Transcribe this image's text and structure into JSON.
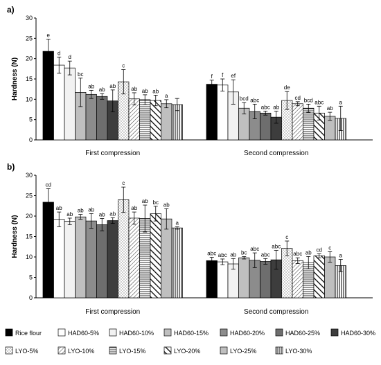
{
  "chart_data": [
    {
      "type": "bar",
      "panel": "a)",
      "ylabel": "Hardness (N)",
      "ylim": [
        0,
        30
      ],
      "yticks": [
        0,
        5,
        10,
        15,
        20,
        25,
        30
      ],
      "groups": [
        "First compression",
        "Second compression"
      ],
      "series": [
        {
          "name": "Rice flour",
          "values": [
            21.8,
            13.7
          ],
          "errors": [
            3.0,
            1.0
          ],
          "letters": [
            "e",
            "f"
          ]
        },
        {
          "name": "HAD60-5%",
          "values": [
            18.4,
            13.5
          ],
          "errors": [
            2.0,
            1.5
          ],
          "letters": [
            "d",
            "f"
          ]
        },
        {
          "name": "HAD60-10%",
          "values": [
            17.7,
            11.8
          ],
          "errors": [
            1.7,
            3.0
          ],
          "letters": [
            "d",
            "ef"
          ]
        },
        {
          "name": "HAD60-15%",
          "values": [
            11.7,
            7.8
          ],
          "errors": [
            3.5,
            1.4
          ],
          "letters": [
            "bc",
            "bcd"
          ]
        },
        {
          "name": "HAD60-20%",
          "values": [
            11.2,
            7.0
          ],
          "errors": [
            1.0,
            1.8
          ],
          "letters": [
            "ab",
            "abc"
          ]
        },
        {
          "name": "HAD60-25%",
          "values": [
            10.7,
            6.6
          ],
          "errors": [
            0.7,
            0.5
          ],
          "letters": [
            "ab",
            "abc"
          ]
        },
        {
          "name": "HAD60-30%",
          "values": [
            9.6,
            5.6
          ],
          "errors": [
            2.7,
            1.5
          ],
          "letters": [
            "ab",
            "ab"
          ]
        },
        {
          "name": "LYO-5%",
          "values": [
            14.3,
            9.7
          ],
          "errors": [
            3.0,
            2.2
          ],
          "letters": [
            "c",
            "de"
          ]
        },
        {
          "name": "LYO-10%",
          "values": [
            10.1,
            8.9
          ],
          "errors": [
            1.5,
            0.5
          ],
          "letters": [
            "ab",
            "cd"
          ]
        },
        {
          "name": "LYO-15%",
          "values": [
            9.9,
            7.8
          ],
          "errors": [
            1.2,
            1.0
          ],
          "letters": [
            "ab",
            "bcd"
          ]
        },
        {
          "name": "LYO-20%",
          "values": [
            9.7,
            6.6
          ],
          "errors": [
            1.3,
            1.7
          ],
          "letters": [
            "ab",
            "abc"
          ]
        },
        {
          "name": "LYO-25%",
          "values": [
            8.9,
            5.8
          ],
          "errors": [
            1.0,
            1.0
          ],
          "letters": [
            "a",
            "ab"
          ]
        },
        {
          "name": "LYO-30%",
          "values": [
            8.7,
            5.3
          ],
          "errors": [
            1.5,
            3.0
          ],
          "letters": [
            "",
            "a"
          ]
        }
      ]
    },
    {
      "type": "bar",
      "panel": "b)",
      "ylabel": "Hardness (N)",
      "ylim": [
        0,
        30
      ],
      "yticks": [
        0,
        5,
        10,
        15,
        20,
        25,
        30
      ],
      "groups": [
        "First compression",
        "Second compression"
      ],
      "series": [
        {
          "name": "Rice flour",
          "values": [
            23.4,
            9.1
          ],
          "errors": [
            3.3,
            0.8
          ],
          "letters": [
            "cd",
            "abc"
          ]
        },
        {
          "name": "HAD60-5%",
          "values": [
            19.2,
            8.8
          ],
          "errors": [
            1.8,
            0.7
          ],
          "letters": [
            "ab",
            "abc"
          ]
        },
        {
          "name": "HAD60-10%",
          "values": [
            18.7,
            8.3
          ],
          "errors": [
            0.8,
            1.3
          ],
          "letters": [
            "ab",
            "ab"
          ]
        },
        {
          "name": "HAD60-15%",
          "values": [
            19.8,
            9.8
          ],
          "errors": [
            0.6,
            0.3
          ],
          "letters": [
            "ab",
            "bc"
          ]
        },
        {
          "name": "HAD60-20%",
          "values": [
            18.8,
            9.2
          ],
          "errors": [
            1.8,
            1.8
          ],
          "letters": [
            "ab",
            "abc"
          ]
        },
        {
          "name": "HAD60-25%",
          "values": [
            17.9,
            8.9
          ],
          "errors": [
            1.5,
            0.7
          ],
          "letters": [
            "ab",
            "abc"
          ]
        },
        {
          "name": "HAD60-30%",
          "values": [
            18.9,
            9.3
          ],
          "errors": [
            0.7,
            2.3
          ],
          "letters": [
            "ab",
            "abc"
          ]
        },
        {
          "name": "LYO-5%",
          "values": [
            24.0,
            12.1
          ],
          "errors": [
            3.1,
            1.8
          ],
          "letters": [
            "c",
            "c"
          ]
        },
        {
          "name": "LYO-10%",
          "values": [
            19.5,
            9.1
          ],
          "errors": [
            1.5,
            0.7
          ],
          "letters": [
            "ab",
            "abc"
          ]
        },
        {
          "name": "LYO-15%",
          "values": [
            19.4,
            8.6
          ],
          "errors": [
            3.3,
            1.5
          ],
          "letters": [
            "ab",
            "ab"
          ]
        },
        {
          "name": "LYO-20%",
          "values": [
            20.6,
            10.3
          ],
          "errors": [
            1.8,
            0.5
          ],
          "letters": [
            "bc",
            "cd"
          ]
        },
        {
          "name": "LYO-25%",
          "values": [
            19.3,
            10.0
          ],
          "errors": [
            2.5,
            1.3
          ],
          "letters": [
            "ab",
            "c"
          ]
        },
        {
          "name": "LYO-30%",
          "values": [
            17.1,
            7.9
          ],
          "errors": [
            0.3,
            1.5
          ],
          "letters": [
            "a",
            "a"
          ]
        }
      ]
    }
  ],
  "legend": [
    {
      "label": "Rice flour",
      "pattern": "solid-black"
    },
    {
      "label": "HAD60-5%",
      "pattern": "white"
    },
    {
      "label": "HAD60-10%",
      "pattern": "very-light-gray"
    },
    {
      "label": "HAD60-15%",
      "pattern": "light-gray"
    },
    {
      "label": "HAD60-20%",
      "pattern": "mid-gray"
    },
    {
      "label": "HAD60-25%",
      "pattern": "dark-gray"
    },
    {
      "label": "HAD60-30%",
      "pattern": "darker-gray"
    },
    {
      "label": "LYO-5%",
      "pattern": "dots"
    },
    {
      "label": "LYO-10%",
      "pattern": "diagonal-hatch"
    },
    {
      "label": "LYO-15%",
      "pattern": "horizontal-lines"
    },
    {
      "label": "LYO-20%",
      "pattern": "thick-diagonal"
    },
    {
      "label": "LYO-25%",
      "pattern": "light-gray-solid"
    },
    {
      "label": "LYO-30%",
      "pattern": "vertical-lines"
    }
  ],
  "colors": {
    "rice": "#000000",
    "had5": "#ffffff",
    "had10": "#f2f2f2",
    "had15": "#bfbfbf",
    "had20": "#8c8c8c",
    "had25": "#6e6e6e",
    "had30": "#3d3d3d",
    "lyo25": "#bfbfbf"
  }
}
